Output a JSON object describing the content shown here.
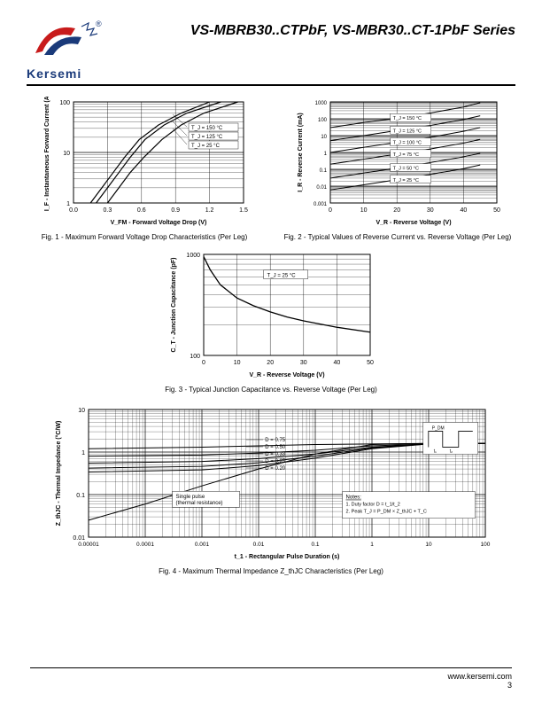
{
  "brand": "Kersemi",
  "title": "VS-MBRB30..CTPbF, VS-MBR30..CT-1PbF Series",
  "footer_url": "www.kersemi.com",
  "page_num": "3",
  "logo_colors": {
    "red": "#c81b1b",
    "blue": "#1a3a7a"
  },
  "fig1": {
    "caption": "Fig. 1 - Maximum Forward Voltage Drop Characteristics (Per Leg)",
    "xlabel": "V_FM - Forward Voltage Drop (V)",
    "ylabel": "I_F - Instantaneous Forward Current (A)",
    "type": "semilogy",
    "xlim": [
      0,
      1.5
    ],
    "xtick_step": 0.3,
    "ylim": [
      1,
      100
    ],
    "yticks": [
      1,
      10,
      100
    ],
    "bg": "#ffffff",
    "grid": "#000000",
    "line": "#000000",
    "curves": {
      "T150": {
        "label": "T_J = 150 °C",
        "x": [
          0.15,
          0.25,
          0.35,
          0.45,
          0.58,
          0.75,
          0.95,
          1.2
        ],
        "y": [
          1,
          2,
          4,
          8,
          18,
          35,
          60,
          100
        ]
      },
      "T125": {
        "label": "T_J = 125 °C",
        "x": [
          0.2,
          0.3,
          0.4,
          0.5,
          0.63,
          0.8,
          1.0,
          1.3
        ],
        "y": [
          1,
          2,
          4,
          8,
          18,
          35,
          60,
          100
        ]
      },
      "T25": {
        "label": "T_J = 25 °C",
        "x": [
          0.3,
          0.4,
          0.5,
          0.62,
          0.78,
          0.95,
          1.15,
          1.45
        ],
        "y": [
          1,
          2,
          4,
          8,
          18,
          35,
          60,
          100
        ]
      }
    }
  },
  "fig2": {
    "caption": "Fig. 2 - Typical Values of Reverse Current vs. Reverse Voltage (Per Leg)",
    "xlabel": "V_R - Reverse Voltage (V)",
    "ylabel": "I_R - Reverse Current (mA)",
    "type": "semilogy",
    "xlim": [
      0,
      50
    ],
    "xtick_step": 10,
    "ylim": [
      0.001,
      1000
    ],
    "yticks": [
      0.001,
      0.01,
      0.1,
      1,
      10,
      100,
      1000
    ],
    "bg": "#ffffff",
    "grid": "#000000",
    "line": "#000000",
    "curves": {
      "T150": {
        "label": "T_J = 150 °C",
        "x": [
          0,
          10,
          20,
          30,
          40,
          45
        ],
        "y": [
          30,
          60,
          110,
          220,
          500,
          900
        ]
      },
      "T125": {
        "label": "T_J = 125 °C",
        "x": [
          0,
          10,
          20,
          30,
          40,
          45
        ],
        "y": [
          5,
          10,
          20,
          40,
          90,
          150
        ]
      },
      "T100": {
        "label": "T_J = 100 °C",
        "x": [
          0,
          10,
          20,
          30,
          40,
          45
        ],
        "y": [
          1,
          2,
          4,
          8,
          18,
          30
        ]
      },
      "T75": {
        "label": "T_J = 75 °C",
        "x": [
          0,
          10,
          20,
          30,
          40,
          45
        ],
        "y": [
          0.2,
          0.4,
          0.8,
          1.6,
          3.6,
          6
        ]
      },
      "T50": {
        "label": "T_J = 50 °C",
        "x": [
          0,
          10,
          20,
          30,
          40,
          45
        ],
        "y": [
          0.03,
          0.06,
          0.12,
          0.25,
          0.55,
          0.9
        ]
      },
      "T25": {
        "label": "T_J = 25 °C",
        "x": [
          0,
          10,
          20,
          30,
          40,
          45
        ],
        "y": [
          0.006,
          0.012,
          0.024,
          0.05,
          0.11,
          0.18
        ]
      }
    }
  },
  "fig3": {
    "caption": "Fig. 3 - Typical Junction Capacitance vs. Reverse Voltage (Per Leg)",
    "xlabel": "V_R - Reverse Voltage (V)",
    "ylabel": "C_T - Junction Capacitance (pF)",
    "type": "semilogy",
    "xlim": [
      0,
      50
    ],
    "xtick_step": 10,
    "ylim": [
      100,
      1000
    ],
    "yticks": [
      100,
      1000
    ],
    "bg": "#ffffff",
    "grid": "#000000",
    "line": "#000000",
    "annot": "T_J = 25 °C",
    "curve": {
      "x": [
        0,
        2,
        5,
        10,
        15,
        20,
        25,
        30,
        40,
        50
      ],
      "y": [
        950,
        700,
        500,
        370,
        310,
        270,
        240,
        220,
        190,
        170
      ]
    }
  },
  "fig4": {
    "caption": "Fig. 4 - Maximum Thermal Impedance Z_thJC Characteristics (Per Leg)",
    "xlabel": "t_1 - Rectangular Pulse Duration (s)",
    "ylabel": "Z_thJC - Thermal Impedance (°C/W)",
    "type": "loglog",
    "xlim": [
      1e-05,
      100
    ],
    "xticks": [
      1e-05,
      0.0001,
      0.001,
      0.01,
      0.1,
      1,
      10,
      100
    ],
    "ylim": [
      0.01,
      10
    ],
    "yticks": [
      0.01,
      0.1,
      1,
      10
    ],
    "bg": "#ffffff",
    "grid": "#000000",
    "line": "#000000",
    "d_labels": [
      "D = 0.75",
      "D = 0.50",
      "D = 0.33",
      "D = 0.25",
      "D = 0.20"
    ],
    "single_pulse_label": "Single pulse\n(thermal resistance)",
    "notes_title": "Notes:",
    "notes": [
      "1. Duty factor D = t_1/t_2",
      "2. Peak T_J = P_DM × Z_thJC + T_C"
    ],
    "curves": {
      "D075": {
        "x": [
          1e-05,
          0.001,
          0.01,
          0.1,
          1,
          10,
          100
        ],
        "y": [
          1.2,
          1.3,
          1.4,
          1.5,
          1.55,
          1.6,
          1.6
        ]
      },
      "D050": {
        "x": [
          1e-05,
          0.001,
          0.01,
          0.1,
          1,
          10,
          100
        ],
        "y": [
          0.8,
          0.85,
          0.95,
          1.1,
          1.4,
          1.55,
          1.6
        ]
      },
      "D033": {
        "x": [
          1e-05,
          0.001,
          0.01,
          0.1,
          1,
          10,
          100
        ],
        "y": [
          0.55,
          0.6,
          0.7,
          0.9,
          1.3,
          1.55,
          1.6
        ]
      },
      "D025": {
        "x": [
          1e-05,
          0.001,
          0.01,
          0.1,
          1,
          10,
          100
        ],
        "y": [
          0.42,
          0.46,
          0.56,
          0.8,
          1.25,
          1.55,
          1.6
        ]
      },
      "D020": {
        "x": [
          1e-05,
          0.001,
          0.01,
          0.1,
          1,
          10,
          100
        ],
        "y": [
          0.34,
          0.38,
          0.48,
          0.72,
          1.2,
          1.55,
          1.6
        ]
      },
      "SP": {
        "x": [
          1e-05,
          0.0001,
          0.001,
          0.01,
          0.1,
          1,
          10
        ],
        "y": [
          0.025,
          0.06,
          0.16,
          0.4,
          0.9,
          1.5,
          1.6
        ]
      }
    }
  }
}
